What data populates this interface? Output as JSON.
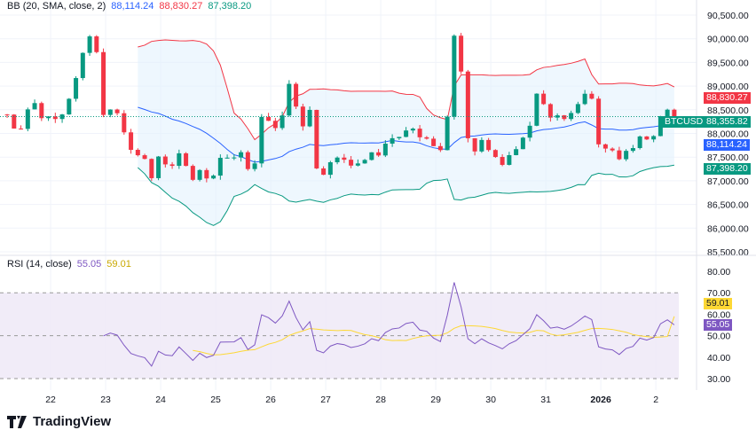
{
  "legend_main": {
    "label": "BB (20, SMA, close, 2)",
    "basis": "88,114.24",
    "upper": "88,830.27",
    "lower": "87,398.20"
  },
  "legend_rsi": {
    "label": "RSI (14, close)",
    "rsi": "55.05",
    "ma": "59.01"
  },
  "tags": {
    "upper": "88,830.27",
    "symbol": "BTCUSD",
    "last": "88,355.82",
    "basis": "88,114.24",
    "lower": "87,398.20",
    "rsi_ma": "59.01",
    "rsi": "55.05"
  },
  "brand": "TradingView",
  "colors": {
    "up": "#089981",
    "down": "#f23645",
    "basis": "#2962ff",
    "upper": "#f23645",
    "lower": "#089981",
    "rsi": "#7e57c2",
    "rsi_ma": "#fdd835",
    "fill": "#e3f2fd",
    "rsi_fill": "#ede7f6"
  },
  "chart_data": [
    {
      "type": "candlestick",
      "title": "BTCUSD",
      "indicator": "BB (20, SMA, close, 2)",
      "yticks": [
        90500,
        90000,
        89500,
        89000,
        88500,
        88000,
        87500,
        87000,
        86500,
        86000,
        85500
      ],
      "ytick_labels": [
        "90,500.00",
        "90,000.00",
        "89,500.00",
        "89,000.00",
        "88,500.00",
        "88,000.00",
        "87,500.00",
        "87,000.00",
        "86,500.00",
        "86,000.00",
        "85,500.00"
      ],
      "ylim": [
        85500,
        90500
      ],
      "xtick_labels": [
        "22",
        "23",
        "24",
        "25",
        "26",
        "27",
        "28",
        "29",
        "30",
        "31",
        "2026",
        "2"
      ],
      "xtick_days": [
        0,
        1,
        2,
        3,
        4,
        5,
        6,
        7,
        8,
        9,
        10,
        11
      ],
      "xlim": [
        -0.92,
        11.74
      ],
      "close_path_day_price": [
        [
          -0.79,
          88400
        ],
        [
          -0.6,
          88050
        ],
        [
          -0.35,
          88700
        ],
        [
          -0.11,
          88300
        ],
        [
          0.21,
          88500
        ],
        [
          0.53,
          89300
        ],
        [
          0.69,
          90100
        ],
        [
          0.85,
          89600
        ],
        [
          0.98,
          88300
        ],
        [
          1.18,
          88500
        ],
        [
          1.42,
          87700
        ],
        [
          1.66,
          87500
        ],
        [
          1.82,
          87000
        ],
        [
          1.98,
          87600
        ],
        [
          2.15,
          87300
        ],
        [
          2.31,
          87500
        ],
        [
          2.55,
          87100
        ],
        [
          2.71,
          87300
        ],
        [
          2.87,
          86900
        ],
        [
          3.03,
          87500
        ],
        [
          3.27,
          87500
        ],
        [
          3.52,
          87500
        ],
        [
          3.68,
          87100
        ],
        [
          3.84,
          88300
        ],
        [
          4.0,
          88400
        ],
        [
          4.16,
          87700
        ],
        [
          4.27,
          89200
        ],
        [
          4.4,
          88900
        ],
        [
          4.56,
          88200
        ],
        [
          4.73,
          88500
        ],
        [
          4.85,
          87200
        ],
        [
          5.05,
          87300
        ],
        [
          5.29,
          87500
        ],
        [
          5.53,
          87400
        ],
        [
          5.85,
          87500
        ],
        [
          6.18,
          87900
        ],
        [
          6.5,
          88000
        ],
        [
          6.82,
          87900
        ],
        [
          7.06,
          87500
        ],
        [
          7.23,
          88600
        ],
        [
          7.34,
          90000
        ],
        [
          7.47,
          89200
        ],
        [
          7.55,
          88000
        ],
        [
          7.71,
          87500
        ],
        [
          7.87,
          88000
        ],
        [
          8.03,
          87500
        ],
        [
          8.19,
          87200
        ],
        [
          8.35,
          87600
        ],
        [
          8.6,
          88000
        ],
        [
          8.76,
          88300
        ],
        [
          8.87,
          89000
        ],
        [
          9.0,
          88300
        ],
        [
          9.16,
          88500
        ],
        [
          9.4,
          88400
        ],
        [
          9.65,
          88700
        ],
        [
          9.81,
          88800
        ],
        [
          9.92,
          88000
        ],
        [
          10.05,
          87600
        ],
        [
          10.21,
          87700
        ],
        [
          10.37,
          87500
        ],
        [
          10.53,
          87600
        ],
        [
          10.69,
          87800
        ],
        [
          10.94,
          88000
        ],
        [
          11.18,
          88500
        ],
        [
          11.34,
          88356
        ]
      ],
      "last_price": 88355.82
    },
    {
      "type": "line",
      "title": "RSI (14, close)",
      "yticks": [
        80,
        70,
        60,
        50,
        40,
        30
      ],
      "ytick_labels": [
        "80.00",
        "70.00",
        "60.00",
        "50.00",
        "40.00",
        "30.00"
      ],
      "ylim": [
        30,
        80
      ],
      "bands": [
        30,
        50,
        70
      ],
      "rsi_last": 55.05,
      "ma_last": 59.01
    }
  ]
}
